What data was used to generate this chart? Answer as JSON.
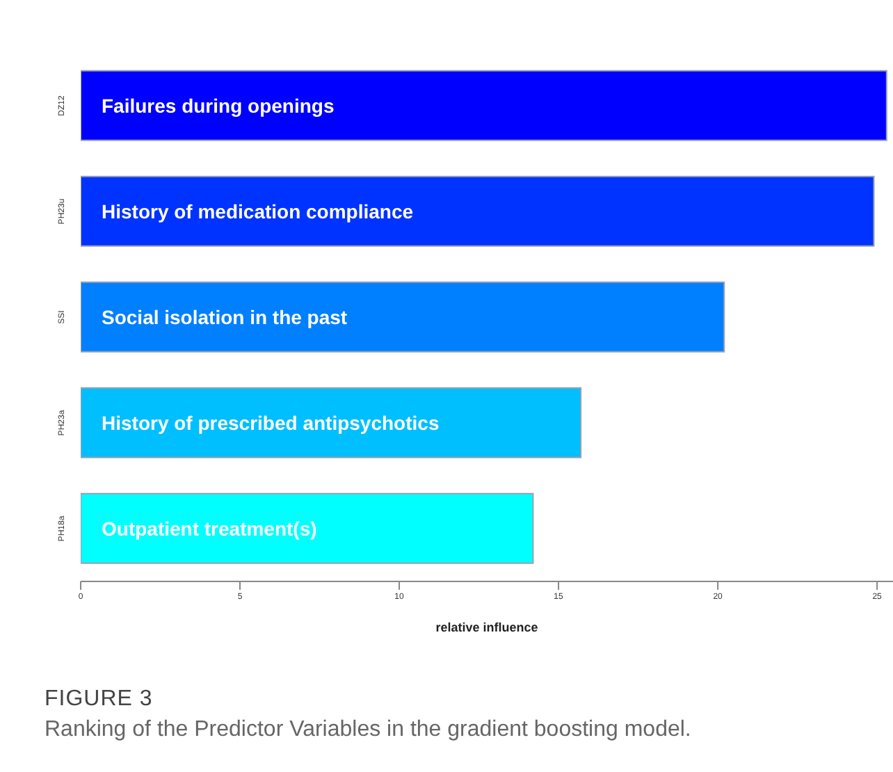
{
  "chart_data": {
    "type": "bar",
    "orientation": "horizontal",
    "title": "FIGURE 3",
    "subtitle": "Ranking of the Predictor Variables in the gradient boosting model.",
    "xlabel": "relative influence",
    "categories": [
      "DZ12",
      "PH23u",
      "SSI",
      "PH23a",
      "PH18a"
    ],
    "values": [
      25.3,
      24.9,
      20.2,
      15.7,
      14.2
    ],
    "colors": [
      "#0000ff",
      "#0033ff",
      "#007fff",
      "#00bfff",
      "#00ffff"
    ],
    "xlim": [
      0,
      25.5
    ],
    "xticks": [
      0,
      5,
      10,
      15,
      20,
      25
    ],
    "grid": false,
    "legend": false,
    "annotations": [
      "Failures during openings",
      "History of medication compliance",
      "Social isolation in the past",
      "History of prescribed antipsychotics",
      "Outpatient treatment(s)"
    ]
  }
}
